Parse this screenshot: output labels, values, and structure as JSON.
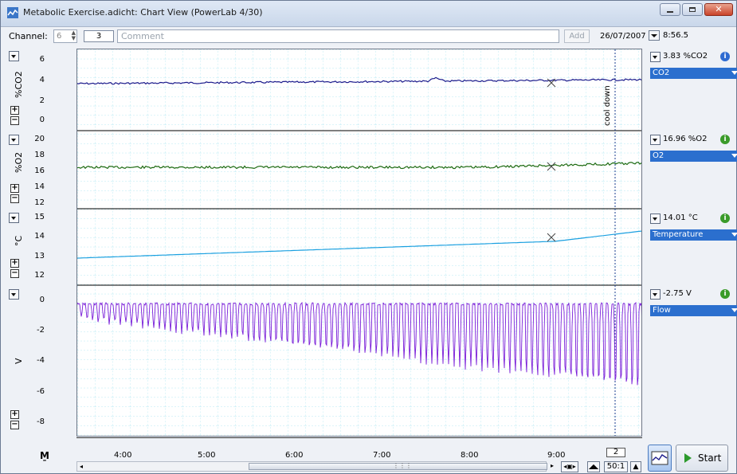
{
  "window": {
    "title": "Metabolic Exercise.adicht: Chart View (PowerLab 4/30)"
  },
  "toolbar": {
    "channel_label": "Channel:",
    "channel_value": "6",
    "comment_number": "3",
    "comment_placeholder": "Comment",
    "add_label": "Add",
    "date": "26/07/2007",
    "time": "8:56.5"
  },
  "channels": [
    {
      "unit": "%CO2",
      "ticks": [
        "6",
        "4",
        "2",
        "0"
      ],
      "readout": "3.83 %CO2",
      "name": "CO2",
      "color": "#1b1b8c",
      "info_icon": "info-icon"
    },
    {
      "unit": "%O2",
      "ticks": [
        "20",
        "18",
        "16",
        "14",
        "12"
      ],
      "readout": "16.96 %O2",
      "name": "O2",
      "color": "#1d6b12",
      "info_icon": "info-green-icon"
    },
    {
      "unit": "°C",
      "ticks": [
        "15",
        "14",
        "13",
        "12"
      ],
      "readout": "14.01 °C",
      "name": "Temperature",
      "color": "#1aa0e0",
      "info_icon": "info-green-icon"
    },
    {
      "unit": "V",
      "ticks": [
        "0",
        "-2",
        "-4",
        "-6",
        "-8"
      ],
      "readout": "-2.75 V",
      "name": "Flow",
      "color": "#7a1ed8",
      "info_icon": "info-green-icon"
    }
  ],
  "annotation": {
    "comment_marker": "cool down"
  },
  "time_axis": {
    "ticks": [
      "4:00",
      "5:00",
      "6:00",
      "7:00",
      "8:00",
      "9:00"
    ],
    "page": "2",
    "zoom": "50:1"
  },
  "start_button": {
    "label": "Start"
  },
  "colors": {
    "grid": "#9fe3f0",
    "selected": "#2b6fce"
  }
}
